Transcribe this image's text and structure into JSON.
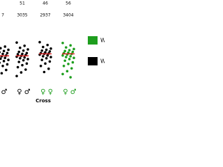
{
  "chart_data": {
    "type": "strip",
    "x_label": "Cross",
    "categories": [
      "♂",
      "♀ ♂",
      "♀ ♀",
      "♀ ♂"
    ],
    "category_colors": [
      "#000000",
      "#000000",
      "#1e9e1e",
      "#1e9e1e"
    ],
    "n_labels": [
      null,
      "51",
      "46",
      "56"
    ],
    "sum_labels": [
      "7",
      "3035",
      "2937",
      "3404"
    ],
    "group_series": [
      1,
      1,
      1,
      0
    ],
    "mean_color": "#d62020",
    "means": [
      65,
      65,
      70,
      70
    ],
    "ylim": [
      0,
      100
    ],
    "points": [
      [
        95,
        88,
        84,
        80,
        77,
        74,
        72,
        70,
        68,
        66,
        64,
        62,
        60,
        58,
        55,
        52,
        48,
        44,
        40,
        35,
        30,
        22
      ],
      [
        98,
        90,
        85,
        81,
        78,
        75,
        72,
        70,
        69,
        67,
        65,
        63,
        61,
        59,
        57,
        54,
        50,
        46,
        42,
        37,
        31,
        24,
        15
      ],
      [
        99,
        92,
        87,
        83,
        80,
        78,
        76,
        74,
        72,
        71,
        70,
        68,
        66,
        64,
        62,
        59,
        55,
        51,
        46,
        40,
        33,
        25
      ],
      [
        97,
        91,
        86,
        82,
        79,
        77,
        75,
        73,
        72,
        70,
        68,
        66,
        64,
        62,
        60,
        57,
        53,
        49,
        45,
        40,
        34,
        27,
        20,
        12
      ]
    ],
    "series": [
      {
        "name": "W",
        "color": "#1e9e1e"
      },
      {
        "name": "W",
        "color": "#000000"
      }
    ]
  }
}
